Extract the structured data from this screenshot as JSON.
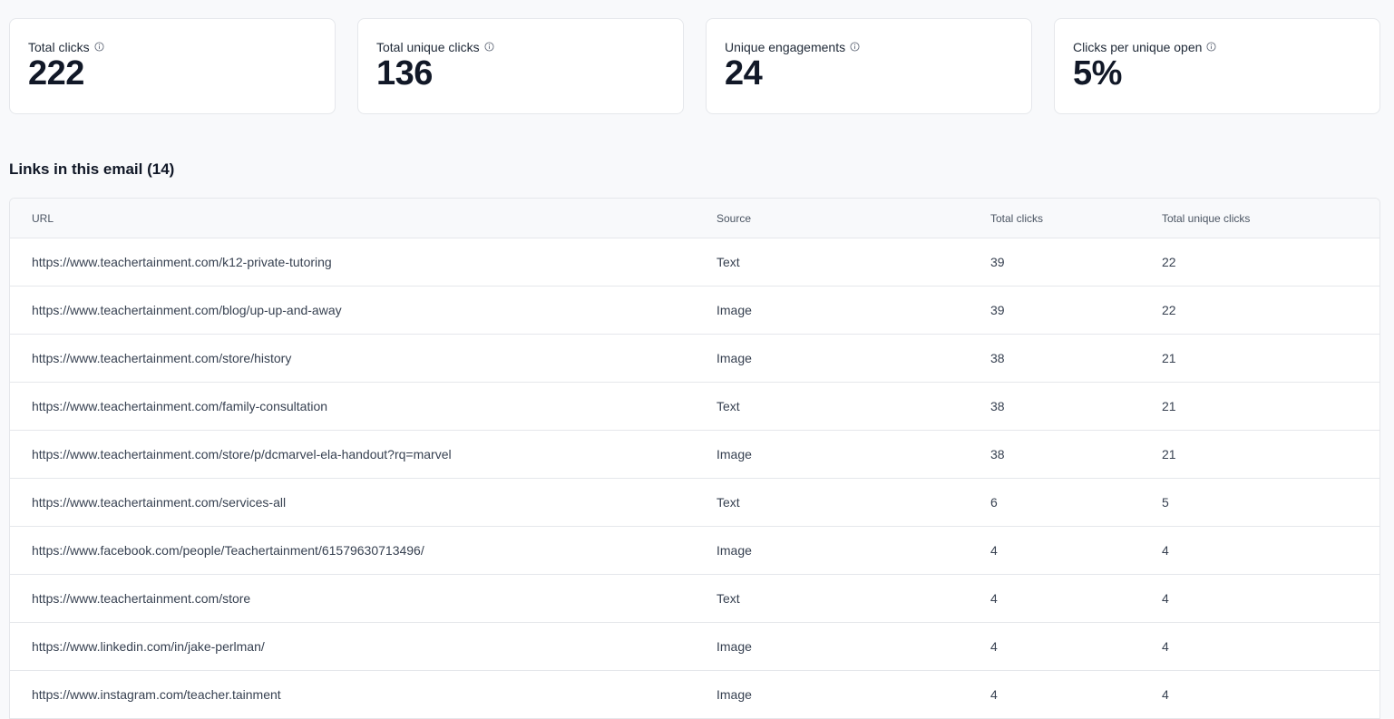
{
  "stats": [
    {
      "label": "Total clicks",
      "value": "222"
    },
    {
      "label": "Total unique clicks",
      "value": "136"
    },
    {
      "label": "Unique engagements",
      "value": "24"
    },
    {
      "label": "Clicks per unique open",
      "value": "5%"
    }
  ],
  "links_section": {
    "title": "Links in this email (14)",
    "columns": {
      "url": "URL",
      "source": "Source",
      "total_clicks": "Total clicks",
      "total_unique_clicks": "Total unique clicks"
    },
    "rows": [
      {
        "url": "https://www.teachertainment.com/k12-private-tutoring",
        "source": "Text",
        "total_clicks": "39",
        "total_unique_clicks": "22"
      },
      {
        "url": "https://www.teachertainment.com/blog/up-up-and-away",
        "source": "Image",
        "total_clicks": "39",
        "total_unique_clicks": "22"
      },
      {
        "url": "https://www.teachertainment.com/store/history",
        "source": "Image",
        "total_clicks": "38",
        "total_unique_clicks": "21"
      },
      {
        "url": "https://www.teachertainment.com/family-consultation",
        "source": "Text",
        "total_clicks": "38",
        "total_unique_clicks": "21"
      },
      {
        "url": "https://www.teachertainment.com/store/p/dcmarvel-ela-handout?rq=marvel",
        "source": "Image",
        "total_clicks": "38",
        "total_unique_clicks": "21"
      },
      {
        "url": "https://www.teachertainment.com/services-all",
        "source": "Text",
        "total_clicks": "6",
        "total_unique_clicks": "5"
      },
      {
        "url": "https://www.facebook.com/people/Teachertainment/61579630713496/",
        "source": "Image",
        "total_clicks": "4",
        "total_unique_clicks": "4"
      },
      {
        "url": "https://www.teachertainment.com/store",
        "source": "Text",
        "total_clicks": "4",
        "total_unique_clicks": "4"
      },
      {
        "url": "https://www.linkedin.com/in/jake-perlman/",
        "source": "Image",
        "total_clicks": "4",
        "total_unique_clicks": "4"
      },
      {
        "url": "https://www.instagram.com/teacher.tainment",
        "source": "Image",
        "total_clicks": "4",
        "total_unique_clicks": "4"
      }
    ]
  },
  "icons": {
    "info": "info-icon"
  }
}
